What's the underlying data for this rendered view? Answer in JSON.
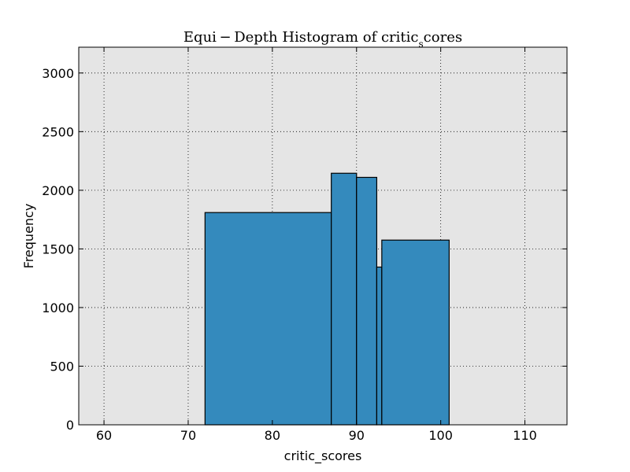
{
  "chart_data": {
    "type": "bar",
    "title_main": "Equi − Depth Histogram of critic",
    "title_sub": "s",
    "title_tail": "cores",
    "xlabel": "critic_scores",
    "ylabel": "Frequency",
    "xlim": [
      57,
      115
    ],
    "ylim": [
      0,
      3220
    ],
    "xticks": [
      60,
      70,
      80,
      90,
      100,
      110
    ],
    "yticks": [
      0,
      500,
      1000,
      1500,
      2000,
      2500,
      3000
    ],
    "grid": true,
    "bar_color": "#348ABD",
    "plot_bg": "#E5E5E5",
    "bins": [
      {
        "x0": 72,
        "x1": 87,
        "value": 1810
      },
      {
        "x0": 87,
        "x1": 90,
        "value": 2145
      },
      {
        "x0": 90,
        "x1": 92.4,
        "value": 2110
      },
      {
        "x0": 92.4,
        "x1": 93,
        "value": 1345
      },
      {
        "x0": 93,
        "x1": 101,
        "value": 1575
      }
    ]
  }
}
